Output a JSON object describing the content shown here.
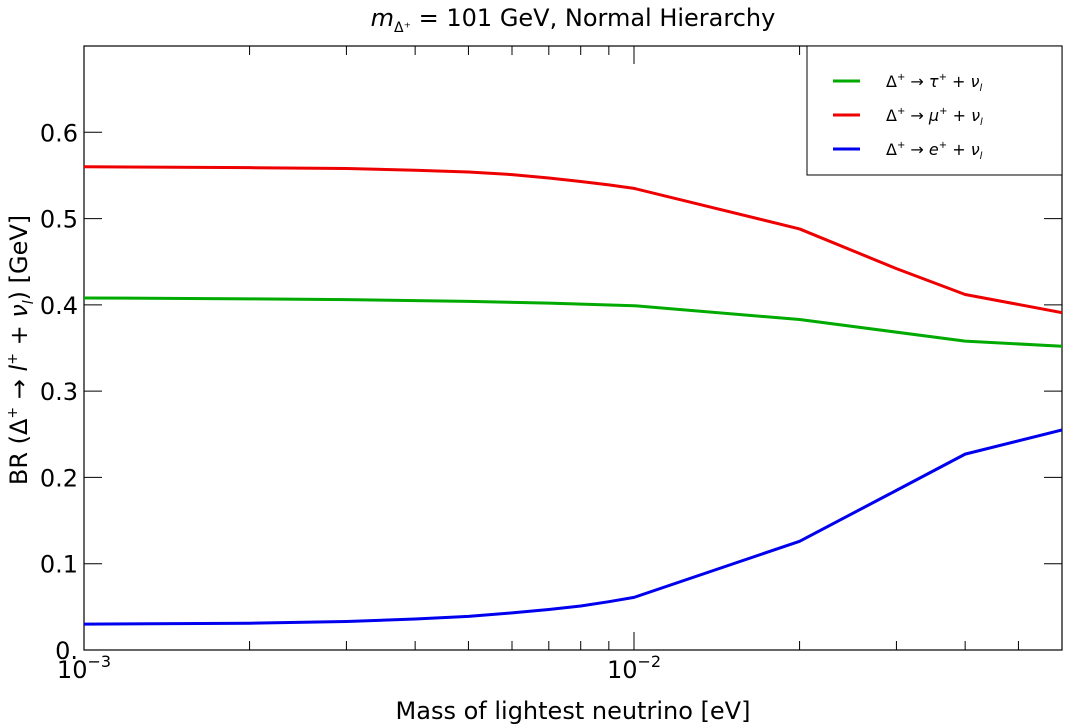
{
  "chart_data": {
    "type": "line",
    "title": {
      "italic": "m",
      "subscript": "Δ⁺",
      "rest": " = 101 GeV, Normal Hierarchy"
    },
    "xlabel": "Mass of lightest neutrino [eV]",
    "ylabel": {
      "prefix": "BR (Δ",
      "sup1": "+",
      "arrow": " → ",
      "l": "l",
      "sup2": "+",
      "plus": " + ",
      "nu": "ν",
      "sub": "l",
      "suffix": ") [GeV]"
    },
    "xscale": "log",
    "xlim": [
      0.001,
      0.06
    ],
    "ylim": [
      0,
      0.7
    ],
    "xticks": [
      {
        "value": 0.001,
        "base": "10",
        "exp": "−3"
      },
      {
        "value": 0.01,
        "base": "10",
        "exp": "−2"
      }
    ],
    "yticks": [
      {
        "value": 0,
        "label": "0."
      },
      {
        "value": 0.1,
        "label": "0.1"
      },
      {
        "value": 0.2,
        "label": "0.2"
      },
      {
        "value": 0.3,
        "label": "0.3"
      },
      {
        "value": 0.4,
        "label": "0.4"
      },
      {
        "value": 0.5,
        "label": "0.5"
      },
      {
        "value": 0.6,
        "label": "0.6"
      }
    ],
    "legend_position": "top-right",
    "series": [
      {
        "name": "tau",
        "color": "#00aa00",
        "legend": {
          "particle": "τ"
        },
        "x": [
          0.001,
          0.002,
          0.003,
          0.005,
          0.007,
          0.01,
          0.02,
          0.04,
          0.06
        ],
        "y": [
          0.408,
          0.407,
          0.406,
          0.404,
          0.402,
          0.399,
          0.383,
          0.358,
          0.352
        ]
      },
      {
        "name": "mu",
        "color": "#ee0000",
        "legend": {
          "particle": "μ"
        },
        "x": [
          0.001,
          0.002,
          0.003,
          0.004,
          0.005,
          0.006,
          0.007,
          0.008,
          0.009,
          0.01,
          0.02,
          0.03,
          0.04,
          0.06
        ],
        "y": [
          0.56,
          0.559,
          0.558,
          0.556,
          0.554,
          0.551,
          0.547,
          0.543,
          0.539,
          0.535,
          0.488,
          0.442,
          0.412,
          0.391
        ]
      },
      {
        "name": "e",
        "color": "#0000ee",
        "legend": {
          "particle": "e"
        },
        "x": [
          0.001,
          0.002,
          0.003,
          0.004,
          0.005,
          0.006,
          0.007,
          0.008,
          0.009,
          0.01,
          0.02,
          0.03,
          0.04,
          0.06
        ],
        "y": [
          0.03,
          0.031,
          0.033,
          0.036,
          0.039,
          0.043,
          0.047,
          0.051,
          0.056,
          0.061,
          0.126,
          0.185,
          0.227,
          0.255
        ]
      }
    ],
    "legend_common": {
      "delta": "Δ",
      "sup": "+",
      "arrow": " → ",
      "plus": " + ",
      "nu": "ν",
      "sub": "l"
    }
  }
}
